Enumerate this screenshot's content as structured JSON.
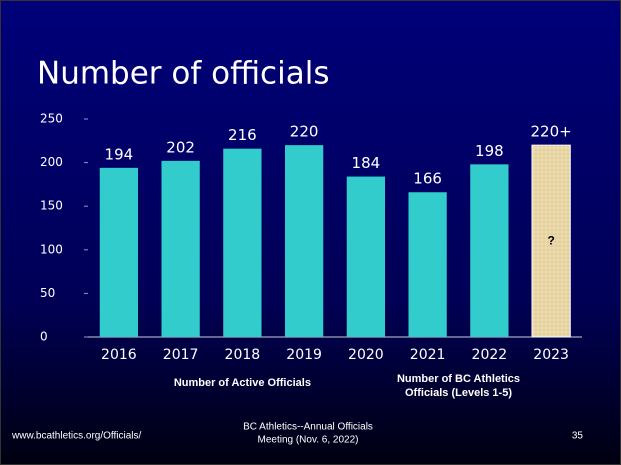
{
  "chart_data": {
    "type": "bar",
    "title": "Number of officials",
    "categories": [
      "2016",
      "2017",
      "2018",
      "2019",
      "2020",
      "2021",
      "2022",
      "2023"
    ],
    "values": [
      194,
      202,
      216,
      220,
      184,
      166,
      198,
      220
    ],
    "value_labels": [
      null,
      null,
      null,
      null,
      null,
      null,
      null,
      "220+"
    ],
    "colors": [
      "#33cccc",
      "#33cccc",
      "#33cccc",
      "#33cccc",
      "#33cccc",
      "#33cccc",
      "#33cccc",
      "#e9d6a6"
    ],
    "annotation": {
      "category": "2023",
      "text": "?"
    },
    "ylim": [
      0,
      250
    ],
    "yticks": [
      0,
      50,
      100,
      150,
      200,
      250
    ],
    "grid": false,
    "x_groups": [
      {
        "from": "2016",
        "to": "2020",
        "lines": [
          "Number of Active Officials"
        ]
      },
      {
        "from": "2021",
        "to": "2022",
        "lines": [
          "Number of BC Athletics",
          "Officials (Levels 1-5)"
        ]
      }
    ]
  },
  "footer": {
    "left": "www.bcathletics.org/Officials/",
    "center": [
      "BC Athletics--Annual Officials",
      "Meeting (Nov. 6, 2022)"
    ],
    "right": "35"
  }
}
